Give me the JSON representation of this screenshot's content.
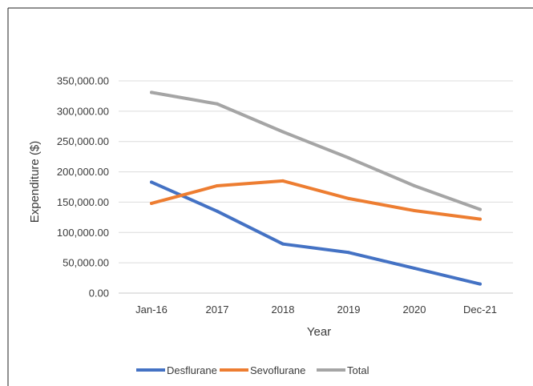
{
  "chart_data": {
    "type": "line",
    "title": "",
    "xlabel": "Year",
    "ylabel": "Expenditure ($)",
    "categories": [
      "Jan-16",
      "2017",
      "2018",
      "2019",
      "2020",
      "Dec-21"
    ],
    "ylim": [
      0,
      350000
    ],
    "yticks": [
      0,
      50000,
      100000,
      150000,
      200000,
      250000,
      300000,
      350000
    ],
    "ytick_labels": [
      "0.00",
      "50,000.00",
      "100,000.00",
      "150,000.00",
      "200,000.00",
      "250,000.00",
      "300,000.00",
      "350,000.00"
    ],
    "grid": true,
    "legend_position": "bottom",
    "series": [
      {
        "name": "Desflurane",
        "color": "#4472C4",
        "values": [
          183000,
          135000,
          81000,
          67000,
          41000,
          15000
        ]
      },
      {
        "name": "Sevoflurane",
        "color": "#ED7D31",
        "values": [
          148000,
          177000,
          185000,
          156000,
          136000,
          122000
        ]
      },
      {
        "name": "Total",
        "color": "#A5A5A5",
        "values": [
          331000,
          312000,
          266000,
          223000,
          177000,
          138000
        ]
      }
    ]
  }
}
